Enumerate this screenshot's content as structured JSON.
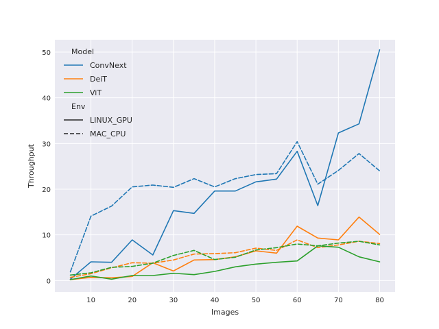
{
  "chart_data": {
    "type": "line",
    "xlabel": "Images",
    "ylabel": "Throughput",
    "xlim": [
      1.25,
      83.75
    ],
    "ylim": [
      -2.5,
      52.7
    ],
    "xticks": [
      10,
      20,
      30,
      40,
      50,
      60,
      70,
      80
    ],
    "yticks": [
      0,
      10,
      20,
      30,
      40,
      50
    ],
    "grid": true,
    "legend_position": "top-left",
    "legend": {
      "hue_title": "Model",
      "style_title": "Env",
      "hue_entries": [
        {
          "label": "ConvNext",
          "color": "#1f77b4"
        },
        {
          "label": "DeiT",
          "color": "#ff7f0e"
        },
        {
          "label": "ViT",
          "color": "#2ca02c"
        }
      ],
      "style_entries": [
        {
          "label": "LINUX_GPU",
          "dash": "solid"
        },
        {
          "label": "MAC_CPU",
          "dash": "dashed"
        }
      ]
    },
    "x": [
      5,
      10,
      15,
      20,
      25,
      30,
      35,
      40,
      45,
      50,
      55,
      60,
      65,
      70,
      75,
      80
    ],
    "series": [
      {
        "model": "ConvNext",
        "env": "LINUX_GPU",
        "color": "#1f77b4",
        "dash": "solid",
        "values": [
          0.3,
          4.1,
          4.0,
          8.9,
          5.6,
          15.3,
          14.7,
          19.6,
          19.6,
          21.6,
          22.2,
          28.3,
          16.4,
          32.3,
          34.3,
          50.5
        ]
      },
      {
        "model": "ConvNext",
        "env": "MAC_CPU",
        "color": "#1f77b4",
        "dash": "dashed",
        "values": [
          1.9,
          14.1,
          16.3,
          20.5,
          20.9,
          20.4,
          22.3,
          20.5,
          22.3,
          23.2,
          23.4,
          30.4,
          21.1,
          24.1,
          27.8,
          24.0
        ]
      },
      {
        "model": "DeiT",
        "env": "LINUX_GPU",
        "color": "#ff7f0e",
        "dash": "solid",
        "values": [
          0.2,
          0.7,
          0.6,
          0.9,
          3.9,
          2.1,
          4.5,
          4.6,
          5.2,
          6.5,
          6.0,
          11.9,
          9.3,
          8.9,
          13.9,
          10.1
        ]
      },
      {
        "model": "DeiT",
        "env": "MAC_CPU",
        "color": "#ff7f0e",
        "dash": "dashed",
        "values": [
          0.7,
          1.5,
          2.8,
          3.9,
          3.8,
          4.5,
          5.8,
          5.9,
          6.1,
          7.1,
          6.6,
          8.9,
          7.2,
          7.8,
          8.6,
          8.1
        ]
      },
      {
        "model": "ViT",
        "env": "LINUX_GPU",
        "color": "#2ca02c",
        "dash": "solid",
        "values": [
          0.2,
          1.0,
          0.3,
          1.1,
          1.1,
          1.6,
          1.3,
          2.0,
          3.0,
          3.6,
          4.0,
          4.3,
          7.6,
          7.3,
          5.2,
          4.1
        ]
      },
      {
        "model": "ViT",
        "env": "MAC_CPU",
        "color": "#2ca02c",
        "dash": "dashed",
        "values": [
          1.2,
          1.7,
          2.9,
          3.1,
          3.8,
          5.5,
          6.6,
          4.6,
          5.1,
          6.7,
          7.2,
          8.0,
          7.6,
          8.2,
          8.6,
          7.8
        ]
      }
    ]
  }
}
